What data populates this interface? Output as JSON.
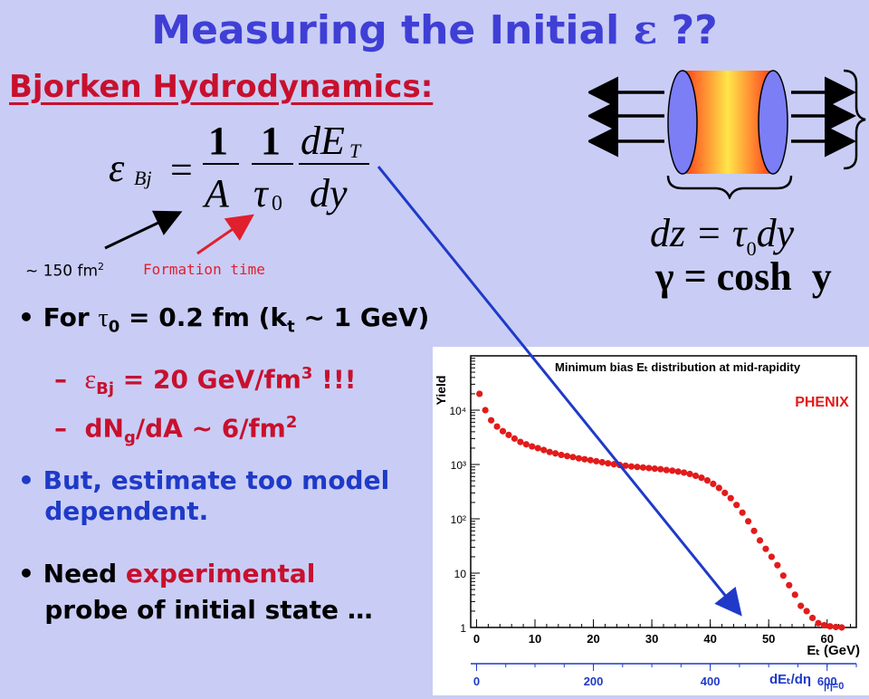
{
  "slide": {
    "title_prefix": "Measuring the Initial",
    "title_symbol": "ε",
    "title_suffix": "??",
    "subtitle": "Bjorken Hydrodynamics:"
  },
  "equation": {
    "lhs": "ε",
    "lhs_sub": "Bj",
    "one_a": "1",
    "A": "A",
    "one_b": "1",
    "tau": "τ",
    "tau_sub": "0",
    "dE": "dE",
    "dE_sub": "T",
    "dy": "dy"
  },
  "annotations": {
    "area_text": "~ 150 fm",
    "area_sup": "2",
    "formation_time": "Formation time"
  },
  "side_equations": {
    "dz_line": "dz = τ",
    "dz_sub": "0",
    "dz_end": "dy",
    "gamma_line": "γ = cosh  y"
  },
  "bullets": {
    "b1_for": "For ",
    "b1_tau": "τ",
    "b1_tau_sub": "0",
    "b1_mid": " = 0.2 fm (k",
    "b1_kt_sub": "t",
    "b1_end": " ~ 1 GeV)",
    "s1_eps": "ε",
    "s1_sub": "Bj",
    "s1_text": " = 20 GeV/fm",
    "s1_sup": "3",
    "s1_end": " !!!",
    "s2_a": "dN",
    "s2_sub": "g",
    "s2_b": "/dA ~ 6/fm",
    "s2_sup": "2",
    "b2_line1": "But, estimate too model",
    "b2_line2": "dependent.",
    "b3_a": "Need ",
    "b3_red": "experimental",
    "b3_line2": "probe of initial state …"
  },
  "chart_data": {
    "type": "scatter",
    "title": "Minimum bias E_t distribution at mid-rapidity",
    "label": "PHENIX",
    "ylabel": "Yield",
    "xlabel": "E_t (GeV)",
    "x2label": "dE_t/dη |η=0",
    "xlim": [
      -1,
      65
    ],
    "ylim": [
      1,
      100000
    ],
    "yscale": "log",
    "x_ticks": [
      0,
      10,
      20,
      30,
      40,
      50,
      60
    ],
    "x2_ticks": [
      0,
      200,
      400,
      600
    ],
    "y_ticks": [
      "1",
      "10",
      "10²",
      "10³",
      "10⁴"
    ],
    "series": [
      {
        "color": "#e21b1b",
        "x": [
          0.5,
          1.5,
          2.5,
          3.5,
          4.5,
          5.5,
          6.5,
          7.5,
          8.5,
          9.5,
          10.5,
          11.5,
          12.5,
          13.5,
          14.5,
          15.5,
          16.5,
          17.5,
          18.5,
          19.5,
          20.5,
          21.5,
          22.5,
          23.5,
          24.5,
          25.5,
          26.5,
          27.5,
          28.5,
          29.5,
          30.5,
          31.5,
          32.5,
          33.5,
          34.5,
          35.5,
          36.5,
          37.5,
          38.5,
          39.5,
          40.5,
          41.5,
          42.5,
          43.5,
          44.5,
          45.5,
          46.5,
          47.5,
          48.5,
          49.5,
          50.5,
          51.5,
          52.5,
          53.5,
          54.5,
          55.5,
          56.5,
          57.5,
          58.5,
          59.5,
          60.5,
          61.5,
          62.5
        ],
        "y": [
          20000,
          10000,
          6500,
          5000,
          4100,
          3500,
          3000,
          2600,
          2350,
          2150,
          2000,
          1850,
          1700,
          1600,
          1500,
          1430,
          1370,
          1300,
          1250,
          1200,
          1150,
          1100,
          1050,
          1010,
          980,
          950,
          920,
          900,
          880,
          860,
          840,
          820,
          790,
          770,
          740,
          710,
          670,
          620,
          570,
          510,
          440,
          370,
          300,
          240,
          180,
          130,
          90,
          60,
          40,
          28,
          20,
          14,
          9,
          6,
          4,
          2.5,
          2,
          1.5,
          1.2,
          1.1,
          1.05,
          1.02,
          1
        ]
      }
    ]
  }
}
